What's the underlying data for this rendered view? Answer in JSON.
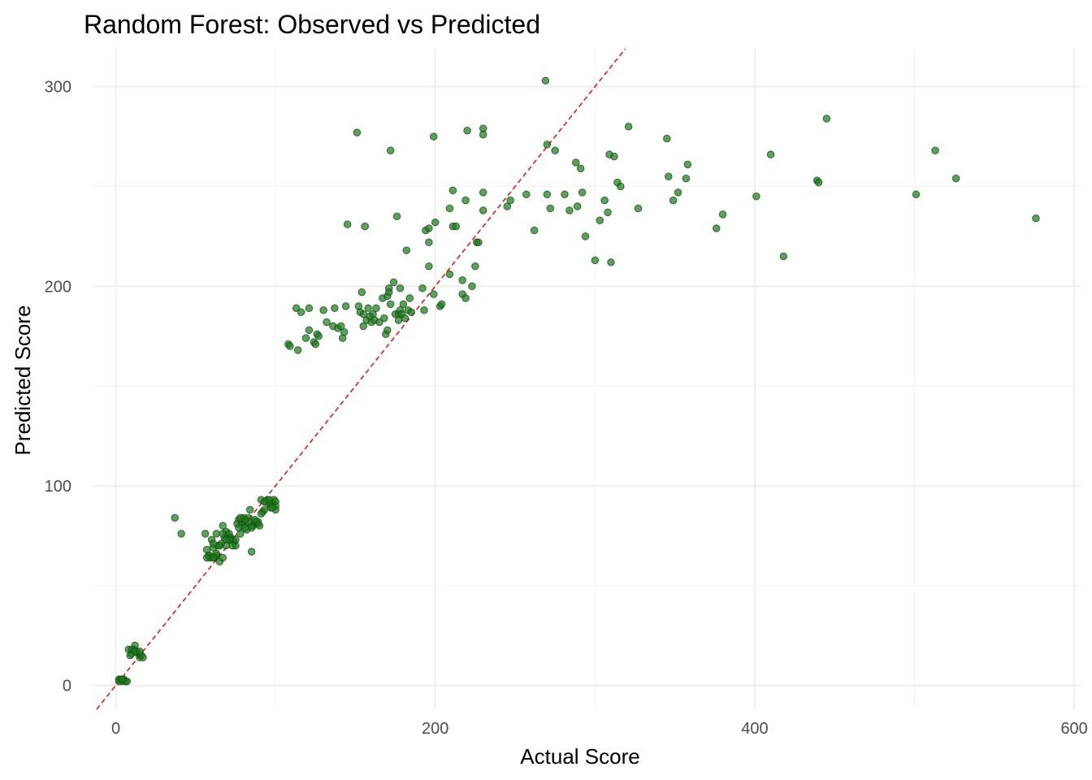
{
  "chart_data": {
    "type": "scatter",
    "title": "Random Forest: Observed vs Predicted",
    "xlabel": "Actual Score",
    "ylabel": "Predicted Score",
    "xlim": [
      -14,
      604
    ],
    "ylim": [
      -12,
      319
    ],
    "x_ticks": [
      0,
      200,
      400,
      600
    ],
    "y_ticks": [
      0,
      100,
      200,
      300
    ],
    "x_tick_labels": [
      "0",
      "200",
      "400",
      "600"
    ],
    "y_tick_labels": [
      "0",
      "100",
      "200",
      "300"
    ],
    "grid": true,
    "legend": "none",
    "reference_line": {
      "type": "identity",
      "slope": 1,
      "intercept": 0,
      "style": "dashed",
      "color": "#e41a1c"
    },
    "point_color": "#1f7a1f",
    "point_stroke": "#0e4a0e",
    "points": [
      [
        2,
        3
      ],
      [
        3,
        3
      ],
      [
        4,
        2
      ],
      [
        5,
        3
      ],
      [
        6,
        2
      ],
      [
        7,
        2
      ],
      [
        2,
        2
      ],
      [
        4,
        3
      ],
      [
        8,
        18
      ],
      [
        9,
        15
      ],
      [
        10,
        16
      ],
      [
        11,
        18
      ],
      [
        12,
        20
      ],
      [
        13,
        17
      ],
      [
        14,
        16
      ],
      [
        15,
        14
      ],
      [
        16,
        15
      ],
      [
        17,
        14
      ],
      [
        10,
        18
      ],
      [
        12,
        17
      ],
      [
        15,
        17
      ],
      [
        37,
        84
      ],
      [
        41,
        76
      ],
      [
        56,
        76
      ],
      [
        57,
        68
      ],
      [
        58,
        65
      ],
      [
        59,
        64
      ],
      [
        60,
        73
      ],
      [
        61,
        69
      ],
      [
        62,
        64
      ],
      [
        63,
        65
      ],
      [
        63,
        76
      ],
      [
        64,
        70
      ],
      [
        65,
        62
      ],
      [
        66,
        71
      ],
      [
        67,
        80
      ],
      [
        67,
        64
      ],
      [
        68,
        74
      ],
      [
        69,
        77
      ],
      [
        70,
        75
      ],
      [
        71,
        76
      ],
      [
        72,
        74
      ],
      [
        73,
        73
      ],
      [
        74,
        72
      ],
      [
        75,
        70
      ],
      [
        76,
        81
      ],
      [
        77,
        83
      ],
      [
        78,
        76
      ],
      [
        79,
        82
      ],
      [
        80,
        84
      ],
      [
        81,
        81
      ],
      [
        82,
        78
      ],
      [
        83,
        84
      ],
      [
        84,
        88
      ],
      [
        85,
        80
      ],
      [
        86,
        80
      ],
      [
        87,
        82
      ],
      [
        88,
        82
      ],
      [
        89,
        81
      ],
      [
        90,
        80
      ],
      [
        91,
        93
      ],
      [
        92,
        87
      ],
      [
        93,
        88
      ],
      [
        94,
        92
      ],
      [
        95,
        93
      ],
      [
        96,
        91
      ],
      [
        97,
        89
      ],
      [
        98,
        91
      ],
      [
        99,
        93
      ],
      [
        100,
        92
      ],
      [
        100,
        90
      ],
      [
        100,
        88
      ],
      [
        98,
        89
      ],
      [
        96,
        93
      ],
      [
        93,
        92
      ],
      [
        91,
        86
      ],
      [
        89,
        82
      ],
      [
        87,
        83
      ],
      [
        85,
        67
      ],
      [
        85,
        79
      ],
      [
        83,
        82
      ],
      [
        81,
        83
      ],
      [
        79,
        80
      ],
      [
        78,
        84
      ],
      [
        77,
        79
      ],
      [
        75,
        73
      ],
      [
        73,
        70
      ],
      [
        71,
        73
      ],
      [
        69,
        73
      ],
      [
        69,
        70
      ],
      [
        67,
        76
      ],
      [
        65,
        70
      ],
      [
        63,
        66
      ],
      [
        61,
        71
      ],
      [
        59,
        65
      ],
      [
        57,
        64
      ],
      [
        61,
        64
      ],
      [
        81,
        79
      ],
      [
        108,
        171
      ],
      [
        109,
        170
      ],
      [
        113,
        189
      ],
      [
        114,
        168
      ],
      [
        116,
        187
      ],
      [
        119,
        174
      ],
      [
        121,
        178
      ],
      [
        121,
        189
      ],
      [
        124,
        172
      ],
      [
        125,
        171
      ],
      [
        126,
        176
      ],
      [
        127,
        175
      ],
      [
        130,
        188
      ],
      [
        132,
        182
      ],
      [
        136,
        180
      ],
      [
        137,
        189
      ],
      [
        139,
        179
      ],
      [
        141,
        180
      ],
      [
        142,
        174
      ],
      [
        143,
        177
      ],
      [
        144,
        190
      ],
      [
        145,
        231
      ],
      [
        151,
        277
      ],
      [
        152,
        190
      ],
      [
        153,
        187
      ],
      [
        154,
        197
      ],
      [
        155,
        186
      ],
      [
        155,
        180
      ],
      [
        156,
        230
      ],
      [
        157,
        183
      ],
      [
        158,
        189
      ],
      [
        159,
        185
      ],
      [
        160,
        182
      ],
      [
        161,
        186
      ],
      [
        162,
        183
      ],
      [
        163,
        189
      ],
      [
        165,
        182
      ],
      [
        167,
        194
      ],
      [
        168,
        184
      ],
      [
        169,
        176
      ],
      [
        170,
        178
      ],
      [
        170,
        195
      ],
      [
        171,
        199
      ],
      [
        171,
        197
      ],
      [
        172,
        268
      ],
      [
        172,
        191
      ],
      [
        174,
        202
      ],
      [
        175,
        186
      ],
      [
        176,
        235
      ],
      [
        177,
        183
      ],
      [
        177,
        186
      ],
      [
        178,
        188
      ],
      [
        178,
        199
      ],
      [
        179,
        186
      ],
      [
        180,
        191
      ],
      [
        181,
        184
      ],
      [
        182,
        218
      ],
      [
        183,
        188
      ],
      [
        184,
        194
      ],
      [
        185,
        187
      ],
      [
        192,
        199
      ],
      [
        193,
        188
      ],
      [
        194,
        228
      ],
      [
        196,
        229
      ],
      [
        196,
        210
      ],
      [
        196,
        222
      ],
      [
        199,
        196
      ],
      [
        199,
        275
      ],
      [
        200,
        232
      ],
      [
        203,
        190
      ],
      [
        204,
        191
      ],
      [
        209,
        239
      ],
      [
        209,
        206
      ],
      [
        211,
        230
      ],
      [
        211,
        248
      ],
      [
        213,
        230
      ],
      [
        217,
        196
      ],
      [
        217,
        203
      ],
      [
        219,
        194
      ],
      [
        219,
        243
      ],
      [
        220,
        278
      ],
      [
        223,
        200
      ],
      [
        225,
        210
      ],
      [
        226,
        222
      ],
      [
        227,
        222
      ],
      [
        230,
        279
      ],
      [
        230,
        276
      ],
      [
        230,
        238
      ],
      [
        230,
        247
      ],
      [
        245,
        240
      ],
      [
        247,
        243
      ],
      [
        257,
        246
      ],
      [
        262,
        228
      ],
      [
        269,
        303
      ],
      [
        270,
        271
      ],
      [
        270,
        246
      ],
      [
        272,
        239
      ],
      [
        275,
        268
      ],
      [
        281,
        246
      ],
      [
        284,
        238
      ],
      [
        288,
        262
      ],
      [
        289,
        240
      ],
      [
        291,
        259
      ],
      [
        292,
        247
      ],
      [
        294,
        225
      ],
      [
        300,
        213
      ],
      [
        303,
        233
      ],
      [
        306,
        243
      ],
      [
        308,
        237
      ],
      [
        309,
        266
      ],
      [
        310,
        212
      ],
      [
        312,
        265
      ],
      [
        314,
        252
      ],
      [
        316,
        250
      ],
      [
        321,
        280
      ],
      [
        327,
        239
      ],
      [
        345,
        274
      ],
      [
        346,
        255
      ],
      [
        349,
        243
      ],
      [
        352,
        247
      ],
      [
        357,
        254
      ],
      [
        358,
        261
      ],
      [
        376,
        229
      ],
      [
        380,
        236
      ],
      [
        401,
        245
      ],
      [
        410,
        266
      ],
      [
        418,
        215
      ],
      [
        439,
        253
      ],
      [
        440,
        252
      ],
      [
        445,
        284
      ],
      [
        501,
        246
      ],
      [
        513,
        268
      ],
      [
        526,
        254
      ],
      [
        576,
        234
      ]
    ]
  }
}
